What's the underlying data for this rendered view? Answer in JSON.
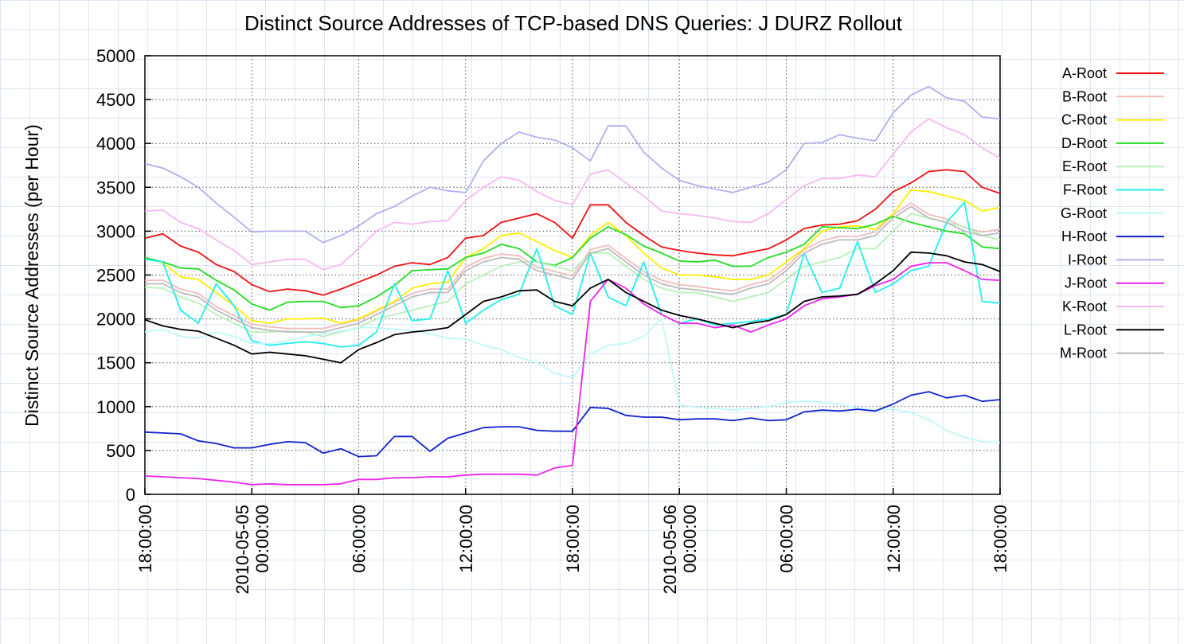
{
  "chart_data": {
    "type": "line",
    "title": "Distinct Source Addresses of TCP-based DNS Queries: J DURZ Rollout",
    "y_label": "Distinct Source Addresses (per Hour)",
    "x": [
      0,
      1,
      2,
      3,
      4,
      5,
      6,
      7,
      8,
      9,
      10,
      11,
      12,
      13,
      14,
      15,
      16,
      17,
      18,
      19,
      20,
      21,
      22,
      23,
      24,
      25,
      26,
      27,
      28,
      29,
      30,
      31,
      32,
      33,
      34,
      35,
      36,
      37,
      38,
      39,
      40,
      41,
      42,
      43,
      44,
      45,
      46,
      47,
      48
    ],
    "xlim": [
      0,
      48
    ],
    "xticks": [
      {
        "value": 0,
        "label": "18:00:00"
      },
      {
        "value": 6,
        "label": "2010-05-05 00:00:00"
      },
      {
        "value": 12,
        "label": "06:00:00"
      },
      {
        "value": 18,
        "label": "12:00:00"
      },
      {
        "value": 24,
        "label": "18:00:00"
      },
      {
        "value": 30,
        "label": "2010-05-06 00:00:00"
      },
      {
        "value": 36,
        "label": "06:00:00"
      },
      {
        "value": 42,
        "label": "12:00:00"
      },
      {
        "value": 48,
        "label": "18:00:00"
      }
    ],
    "ylim": [
      0,
      5000
    ],
    "yticks": [
      0,
      500,
      1000,
      1500,
      2000,
      2500,
      3000,
      3500,
      4000,
      4500,
      5000
    ],
    "grid": true,
    "legend": "right",
    "series": [
      {
        "name": "A-Root",
        "color": "#ee1111",
        "values": [
          2920,
          2970,
          2830,
          2760,
          2620,
          2540,
          2390,
          2310,
          2340,
          2320,
          2270,
          2340,
          2420,
          2500,
          2600,
          2640,
          2620,
          2700,
          2920,
          2950,
          3100,
          3150,
          3200,
          3100,
          2920,
          3300,
          3300,
          3100,
          2950,
          2820,
          2780,
          2750,
          2730,
          2720,
          2760,
          2800,
          2900,
          3030,
          3070,
          3080,
          3120,
          3250,
          3450,
          3550,
          3680,
          3700,
          3680,
          3500,
          3430
        ]
      },
      {
        "name": "B-Root",
        "color": "#f2bcbc",
        "values": [
          2440,
          2440,
          2340,
          2290,
          2140,
          2040,
          1940,
          1910,
          1890,
          1890,
          1890,
          1940,
          1990,
          2090,
          2190,
          2290,
          2340,
          2340,
          2590,
          2690,
          2740,
          2720,
          2590,
          2540,
          2490,
          2790,
          2840,
          2690,
          2540,
          2440,
          2390,
          2370,
          2340,
          2320,
          2390,
          2440,
          2590,
          2790,
          2890,
          2940,
          2940,
          2990,
          3190,
          3320,
          3190,
          3140,
          3040,
          2990,
          3020
        ]
      },
      {
        "name": "C-Root",
        "color": "#ffee00",
        "values": [
          2700,
          2640,
          2480,
          2450,
          2300,
          2150,
          1980,
          1950,
          2000,
          2000,
          2010,
          1950,
          2000,
          2100,
          2200,
          2350,
          2400,
          2420,
          2700,
          2800,
          2950,
          2980,
          2880,
          2780,
          2700,
          2950,
          3100,
          2950,
          2750,
          2580,
          2500,
          2500,
          2480,
          2450,
          2450,
          2500,
          2650,
          2800,
          3000,
          3050,
          3060,
          3020,
          3200,
          3470,
          3450,
          3400,
          3350,
          3230,
          3270
        ]
      },
      {
        "name": "D-Root",
        "color": "#22dd22",
        "values": [
          2700,
          2650,
          2580,
          2570,
          2440,
          2330,
          2170,
          2100,
          2190,
          2200,
          2200,
          2130,
          2150,
          2250,
          2380,
          2550,
          2560,
          2570,
          2700,
          2750,
          2850,
          2800,
          2650,
          2610,
          2700,
          2920,
          3050,
          2960,
          2830,
          2750,
          2660,
          2650,
          2670,
          2600,
          2600,
          2700,
          2760,
          2850,
          3050,
          3040,
          3030,
          3080,
          3170,
          3100,
          3050,
          3000,
          2970,
          2820,
          2800
        ]
      },
      {
        "name": "E-Root",
        "color": "#b8f0b8",
        "values": [
          2360,
          2350,
          2250,
          2180,
          2050,
          1950,
          1850,
          1850,
          1860,
          1850,
          1800,
          1850,
          1900,
          2000,
          2050,
          2100,
          2150,
          2200,
          2400,
          2500,
          2600,
          2650,
          2650,
          2600,
          2550,
          2750,
          2750,
          2600,
          2450,
          2350,
          2300,
          2300,
          2250,
          2200,
          2250,
          2300,
          2450,
          2600,
          2650,
          2700,
          2800,
          2800,
          3000,
          3200,
          3150,
          3100,
          3050,
          2950,
          2900
        ]
      },
      {
        "name": "F-Root",
        "color": "#22eeee",
        "values": [
          2680,
          2650,
          2100,
          1950,
          2400,
          2150,
          1750,
          1700,
          1720,
          1740,
          1720,
          1680,
          1700,
          1850,
          2400,
          1980,
          2000,
          2550,
          1950,
          2100,
          2220,
          2280,
          2800,
          2150,
          2050,
          2750,
          2250,
          2150,
          2650,
          2050,
          1950,
          2000,
          1930,
          1950,
          1970,
          2000,
          2050,
          2750,
          2300,
          2350,
          2880,
          2300,
          2400,
          2550,
          2600,
          3100,
          3330,
          2200,
          2180
        ]
      },
      {
        "name": "G-Root",
        "color": "#c0f8f8",
        "values": [
          1850,
          1880,
          1800,
          1780,
          1850,
          1800,
          1720,
          1720,
          1750,
          1800,
          1830,
          1860,
          1900,
          1900,
          1880,
          1870,
          1830,
          1780,
          1770,
          1700,
          1650,
          1560,
          1500,
          1380,
          1330,
          1600,
          1700,
          1720,
          1800,
          2000,
          1020,
          990,
          980,
          960,
          980,
          1000,
          1050,
          1060,
          1050,
          1030,
          980,
          960,
          970,
          930,
          850,
          730,
          650,
          600,
          590
        ]
      },
      {
        "name": "H-Root",
        "color": "#1122cc",
        "values": [
          710,
          700,
          690,
          610,
          580,
          530,
          530,
          570,
          600,
          590,
          470,
          520,
          430,
          440,
          660,
          660,
          490,
          640,
          700,
          760,
          770,
          770,
          730,
          720,
          720,
          990,
          980,
          900,
          880,
          880,
          850,
          860,
          860,
          840,
          870,
          840,
          850,
          940,
          960,
          950,
          970,
          950,
          1030,
          1130,
          1170,
          1100,
          1130,
          1060,
          1080
        ]
      },
      {
        "name": "I-Root",
        "color": "#b0b0ee",
        "values": [
          3770,
          3720,
          3620,
          3500,
          3320,
          3160,
          2990,
          3000,
          3000,
          3000,
          2870,
          2950,
          3060,
          3200,
          3280,
          3400,
          3500,
          3460,
          3440,
          3800,
          4000,
          4130,
          4070,
          4040,
          3950,
          3800,
          4200,
          4200,
          3900,
          3720,
          3580,
          3520,
          3480,
          3440,
          3500,
          3560,
          3700,
          4000,
          4010,
          4100,
          4060,
          4030,
          4350,
          4550,
          4650,
          4520,
          4480,
          4300,
          4280
        ]
      },
      {
        "name": "J-Root",
        "color": "#ee22ee",
        "values": [
          210,
          200,
          190,
          180,
          160,
          140,
          110,
          120,
          110,
          110,
          110,
          120,
          170,
          170,
          190,
          190,
          200,
          200,
          220,
          230,
          230,
          230,
          220,
          300,
          330,
          2200,
          2450,
          2350,
          2170,
          2050,
          1950,
          1950,
          1900,
          1930,
          1850,
          1930,
          2000,
          2150,
          2230,
          2250,
          2280,
          2380,
          2450,
          2600,
          2640,
          2640,
          2550,
          2450,
          2440
        ]
      },
      {
        "name": "K-Root",
        "color": "#f8b8f0",
        "values": [
          3230,
          3240,
          3100,
          3030,
          2900,
          2780,
          2620,
          2650,
          2680,
          2680,
          2560,
          2620,
          2800,
          3000,
          3100,
          3080,
          3110,
          3120,
          3350,
          3500,
          3620,
          3580,
          3450,
          3350,
          3300,
          3650,
          3700,
          3550,
          3400,
          3230,
          3200,
          3180,
          3150,
          3110,
          3100,
          3200,
          3360,
          3520,
          3600,
          3600,
          3640,
          3620,
          3880,
          4130,
          4280,
          4180,
          4100,
          3950,
          3830
        ]
      },
      {
        "name": "L-Root",
        "color": "#000000",
        "values": [
          1990,
          1920,
          1880,
          1860,
          1780,
          1700,
          1600,
          1620,
          1600,
          1580,
          1540,
          1500,
          1650,
          1730,
          1820,
          1850,
          1870,
          1900,
          2050,
          2200,
          2250,
          2320,
          2330,
          2200,
          2150,
          2350,
          2450,
          2300,
          2200,
          2100,
          2040,
          2000,
          1950,
          1900,
          1950,
          1980,
          2050,
          2200,
          2250,
          2260,
          2280,
          2400,
          2550,
          2760,
          2750,
          2720,
          2650,
          2620,
          2540
        ]
      },
      {
        "name": "M-Root",
        "color": "#bbbbbb",
        "values": [
          2400,
          2400,
          2300,
          2250,
          2100,
          2000,
          1900,
          1870,
          1850,
          1850,
          1850,
          1900,
          1950,
          2050,
          2150,
          2250,
          2300,
          2300,
          2550,
          2650,
          2700,
          2680,
          2550,
          2500,
          2450,
          2750,
          2800,
          2650,
          2500,
          2400,
          2350,
          2330,
          2300,
          2280,
          2350,
          2400,
          2550,
          2750,
          2850,
          2900,
          2900,
          2950,
          3150,
          3280,
          3150,
          3100,
          3000,
          2950,
          2980
        ]
      }
    ]
  }
}
